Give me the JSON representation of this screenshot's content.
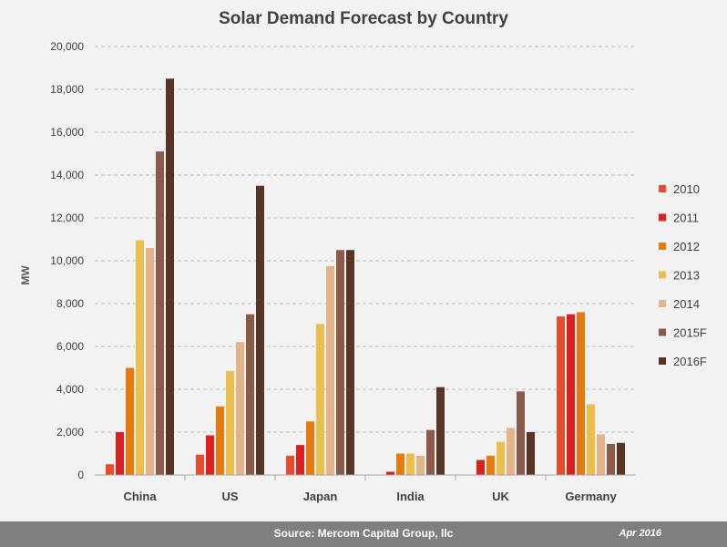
{
  "chart_data": {
    "type": "bar",
    "title": "Solar Demand Forecast by Country",
    "xlabel": "",
    "ylabel": "MW",
    "ylim": [
      0,
      20000
    ],
    "yticks": [
      "0",
      "2,000",
      "4,000",
      "6,000",
      "8,000",
      "10,000",
      "12,000",
      "14,000",
      "16,000",
      "18,000",
      "20,000"
    ],
    "grid": true,
    "legend_position": "right",
    "categories": [
      "China",
      "US",
      "Japan",
      "India",
      "UK",
      "Germany"
    ],
    "series": [
      {
        "name": "2010",
        "color": "#e84c2e",
        "values": [
          500,
          950,
          900,
          0,
          0,
          7400
        ]
      },
      {
        "name": "2011",
        "color": "#dc1f1f",
        "values": [
          2000,
          1850,
          1400,
          150,
          700,
          7500
        ]
      },
      {
        "name": "2012",
        "color": "#e67a0e",
        "values": [
          5000,
          3200,
          2500,
          1000,
          900,
          7600
        ]
      },
      {
        "name": "2013",
        "color": "#ebbe4e",
        "values": [
          10950,
          4850,
          7050,
          1000,
          1550,
          3300
        ]
      },
      {
        "name": "2014",
        "color": "#e3b48a",
        "values": [
          10600,
          6200,
          9750,
          900,
          2200,
          1900
        ]
      },
      {
        "name": "2015F",
        "color": "#8c5a48",
        "values": [
          15100,
          7500,
          10500,
          2100,
          3900,
          1450
        ]
      },
      {
        "name": "2016F",
        "color": "#5a3424",
        "values": [
          18500,
          13500,
          10500,
          4100,
          2000,
          1500
        ]
      }
    ]
  },
  "footer": {
    "source": "Source: Mercom Capital Group, llc",
    "date": "Apr 2016"
  }
}
